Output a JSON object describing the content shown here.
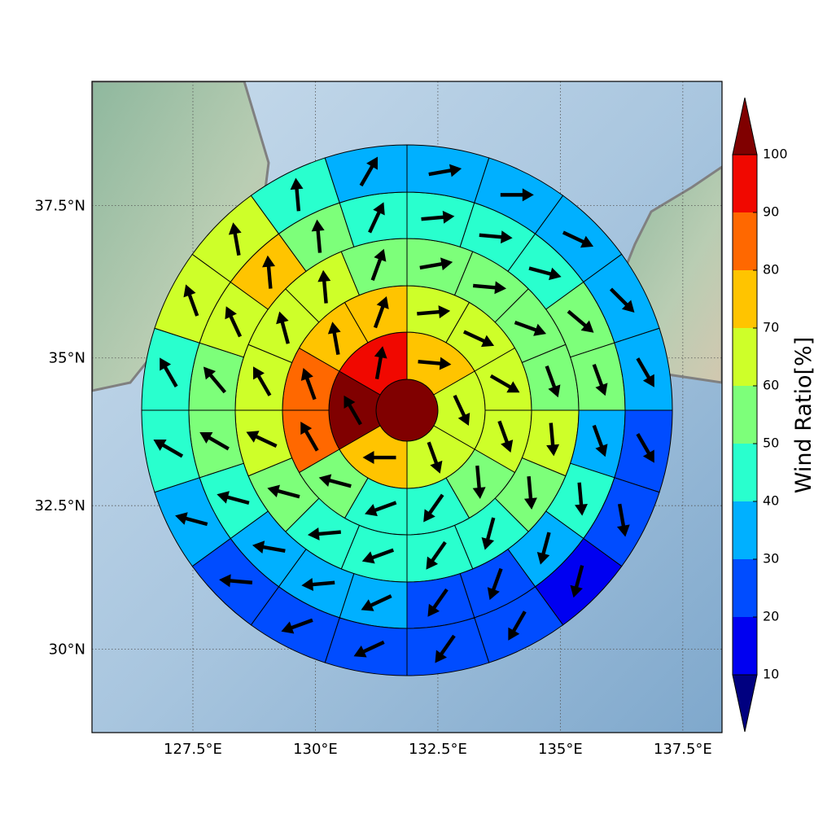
{
  "chart_data": {
    "type": "polar-map",
    "xlim": [
      125.44,
      138.3
    ],
    "ylim": [
      28.52,
      39.48
    ],
    "xticks": [
      {
        "value": 127.5,
        "label": "127.5°E"
      },
      {
        "value": 130,
        "label": "130°E"
      },
      {
        "value": 132.5,
        "label": "132.5°E"
      },
      {
        "value": 135,
        "label": "135°E"
      },
      {
        "value": 137.5,
        "label": "137.5°E"
      }
    ],
    "yticks": [
      {
        "value": 30,
        "label": "30°N"
      },
      {
        "value": 32.5,
        "label": "32.5°N"
      },
      {
        "value": 35,
        "label": "35°N"
      },
      {
        "value": 37.5,
        "label": "37.5°N"
      }
    ],
    "projection": "mercator",
    "grid": true,
    "rings": [
      {
        "values": [
          105
        ]
      },
      {
        "values": [
          75,
          65,
          65,
          75,
          105,
          95
        ],
        "directions": [
          95,
          155,
          160,
          270,
          330,
          10
        ]
      },
      {
        "values": [
          65,
          65,
          65,
          65,
          55,
          45,
          45,
          55,
          85,
          85,
          75,
          75
        ],
        "directions": [
          85,
          115,
          120,
          160,
          175,
          215,
          250,
          285,
          330,
          340,
          350,
          20
        ]
      },
      {
        "values": [
          55,
          55,
          55,
          55,
          65,
          55,
          45,
          45,
          45,
          45,
          55,
          65,
          65,
          65,
          65,
          55
        ],
        "directions": [
          80,
          95,
          110,
          160,
          175,
          175,
          195,
          215,
          250,
          265,
          285,
          295,
          330,
          345,
          355,
          20
        ]
      },
      {
        "values": [
          45,
          45,
          45,
          55,
          55,
          35,
          45,
          35,
          25,
          25,
          35,
          35,
          35,
          45,
          55,
          55,
          65,
          75,
          55,
          45
        ],
        "directions": [
          85,
          95,
          105,
          130,
          160,
          160,
          175,
          195,
          200,
          215,
          245,
          265,
          280,
          285,
          300,
          320,
          335,
          355,
          355,
          25
        ]
      },
      {
        "values": [
          35,
          35,
          35,
          35,
          35,
          25,
          25,
          15,
          25,
          25,
          25,
          25,
          25,
          35,
          45,
          45,
          65,
          65,
          45,
          35
        ],
        "directions": [
          80,
          90,
          115,
          135,
          150,
          150,
          170,
          195,
          210,
          215,
          245,
          250,
          275,
          285,
          300,
          330,
          340,
          350,
          355,
          30
        ]
      }
    ],
    "colorbar": {
      "label": "Wind Ratio[%]",
      "ticks": [
        10,
        20,
        30,
        40,
        50,
        60,
        70,
        80,
        90,
        100
      ],
      "colors": [
        "#000080",
        "#0000f1",
        "#004cff",
        "#00b0ff",
        "#29ffce",
        "#7dff7a",
        "#ceff29",
        "#ffc400",
        "#ff6800",
        "#f10800",
        "#800000"
      ]
    }
  }
}
